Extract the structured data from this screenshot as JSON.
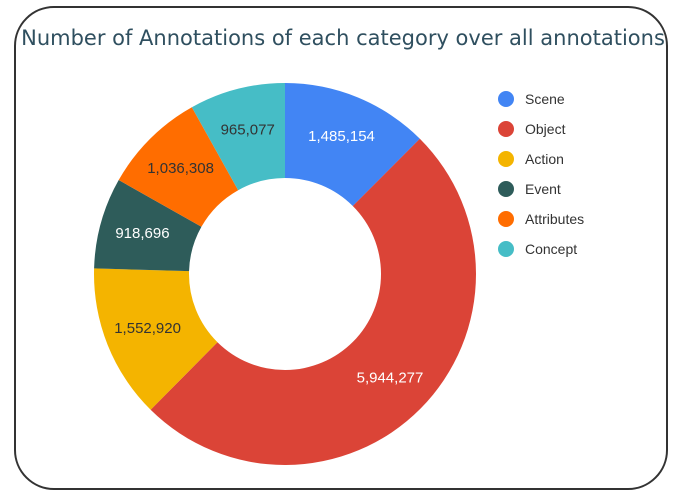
{
  "chart_data": {
    "type": "pie",
    "variant": "donut",
    "title": "Number of Annotations of each category over all annotations",
    "categories": [
      "Scene",
      "Object",
      "Action",
      "Event",
      "Attributes",
      "Concept"
    ],
    "values": [
      1485154,
      5944277,
      1552920,
      918696,
      1036308,
      965077
    ],
    "value_labels": [
      "1,485,154",
      "5,944,277",
      "1,552,920",
      "918,696",
      "1,036,308",
      "965,077"
    ],
    "colors": [
      "#4285f4",
      "#db4437",
      "#f4b400",
      "#2e5c5a",
      "#ff6d00",
      "#46bdc6"
    ],
    "label_colors": [
      "#ffffff",
      "#ffffff",
      "#333333",
      "#ffffff",
      "#333333",
      "#333333"
    ],
    "legend_position": "right"
  }
}
